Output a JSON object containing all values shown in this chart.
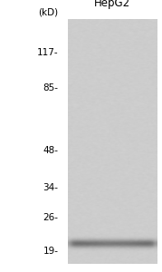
{
  "title": "HepG2",
  "kd_label": "(kD)",
  "markers_kd": [
    117,
    85,
    48,
    34,
    26,
    19
  ],
  "marker_labels": [
    "117-",
    "85-",
    "48-",
    "34-",
    "26-"
  ],
  "marker_label_19": "19-",
  "band_kd": 20.5,
  "log_scale_min_kd": 17,
  "log_scale_max_kd": 160,
  "gel_bg_value": 0.8,
  "band_dark_value": 0.18,
  "title_fontsize": 8.5,
  "marker_fontsize": 7.5,
  "kd_fontsize": 7.5,
  "figure_bg": "#ffffff",
  "gel_bg": "#c8c8c8"
}
